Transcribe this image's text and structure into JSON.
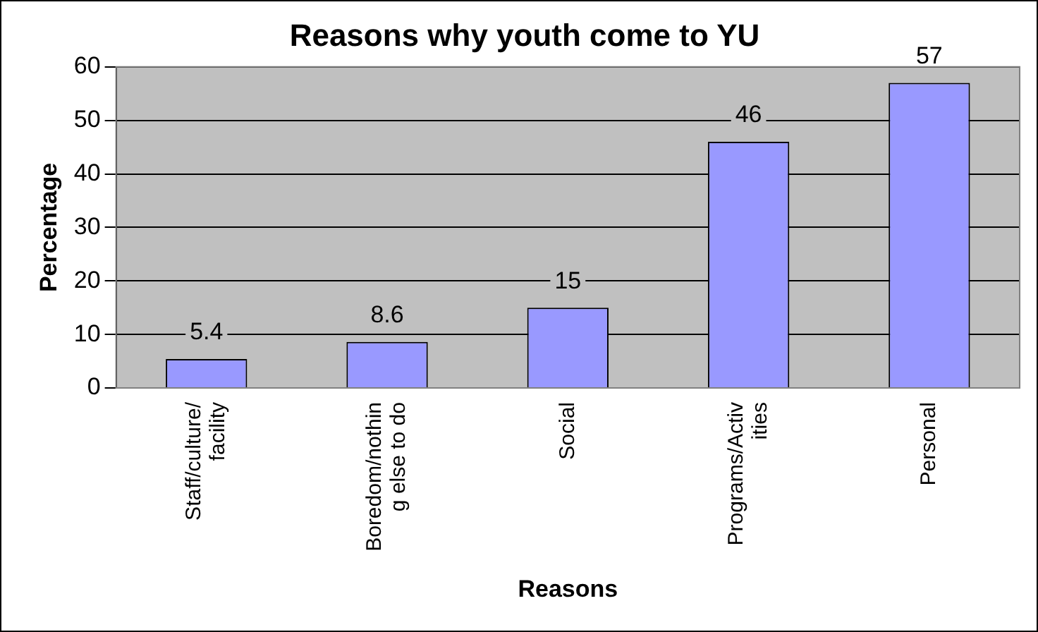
{
  "chart_data": {
    "type": "bar",
    "title": "Reasons why youth come to YU",
    "xlabel": "Reasons",
    "ylabel": "Percentage",
    "categories": [
      "Staff/culture/facility",
      "Boredom/nothing else to do",
      "Social",
      "Programs/Activities",
      "Personal"
    ],
    "values": [
      5.4,
      8.6,
      15,
      46,
      57
    ],
    "color": "#9999ff",
    "ylim": [
      0,
      60
    ],
    "yticks": [
      0,
      10,
      20,
      30,
      40,
      50,
      60
    ],
    "grid": "y",
    "data_labels": true
  }
}
